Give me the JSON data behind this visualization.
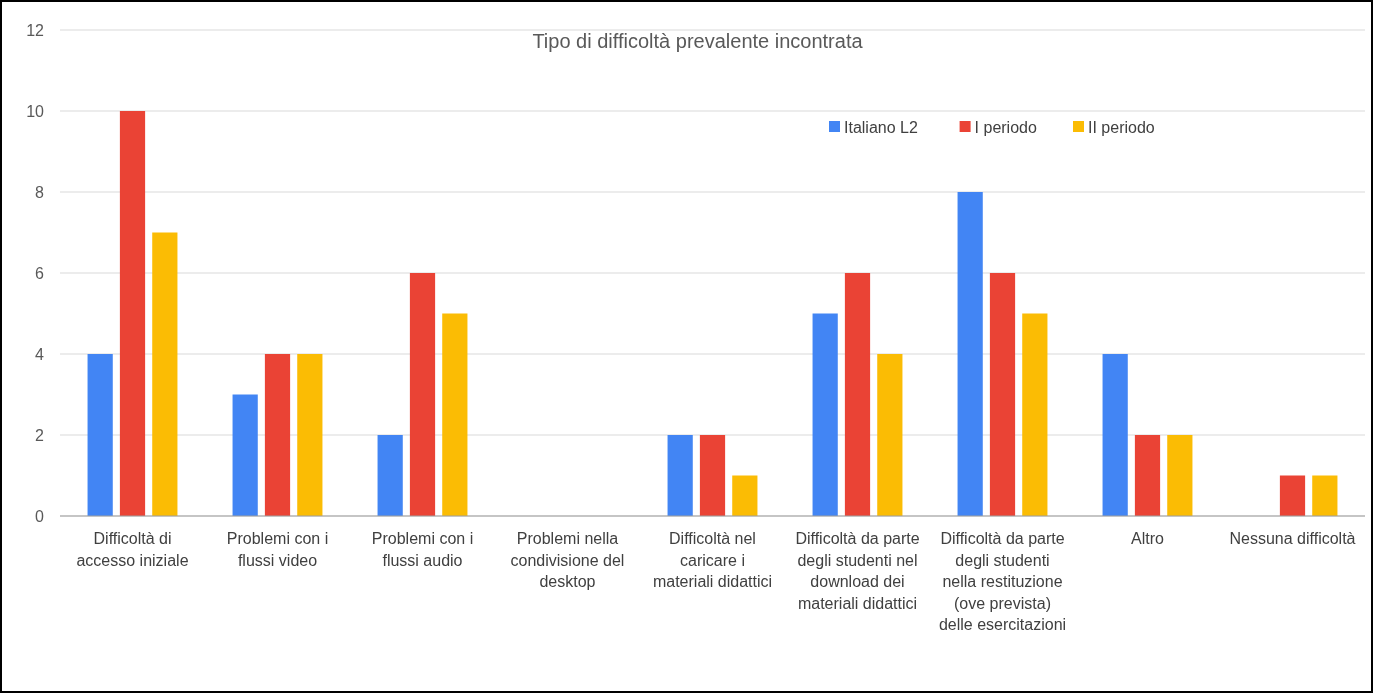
{
  "chart_data": {
    "type": "bar",
    "title": "Tipo di difficoltà prevalente incontrata",
    "categories": [
      "Difficoltà di accesso iniziale",
      "Problemi con i flussi video",
      "Problemi con i flussi audio",
      "Problemi nella condivisione del desktop",
      "Difficoltà nel caricare i materiali didattici",
      "Difficoltà da parte degli studenti nel download dei materiali didattici",
      "Difficoltà da parte degli studenti nella restituzione (ove prevista) delle esercitazioni",
      "Altro",
      "Nessuna difficoltà"
    ],
    "series": [
      {
        "name": "Italiano L2",
        "color": "#4285f4",
        "values": [
          4,
          3,
          2,
          0,
          2,
          5,
          8,
          4,
          0
        ]
      },
      {
        "name": "I periodo",
        "color": "#ea4335",
        "values": [
          10,
          4,
          6,
          0,
          2,
          6,
          6,
          2,
          1
        ]
      },
      {
        "name": "II periodo",
        "color": "#fbbc04",
        "values": [
          7,
          4,
          5,
          0,
          1,
          4,
          5,
          2,
          1
        ]
      }
    ],
    "ylim": [
      0,
      12
    ],
    "yticks": [
      0,
      2,
      4,
      6,
      8,
      10,
      12
    ],
    "grid": "y",
    "legend": "top right"
  }
}
